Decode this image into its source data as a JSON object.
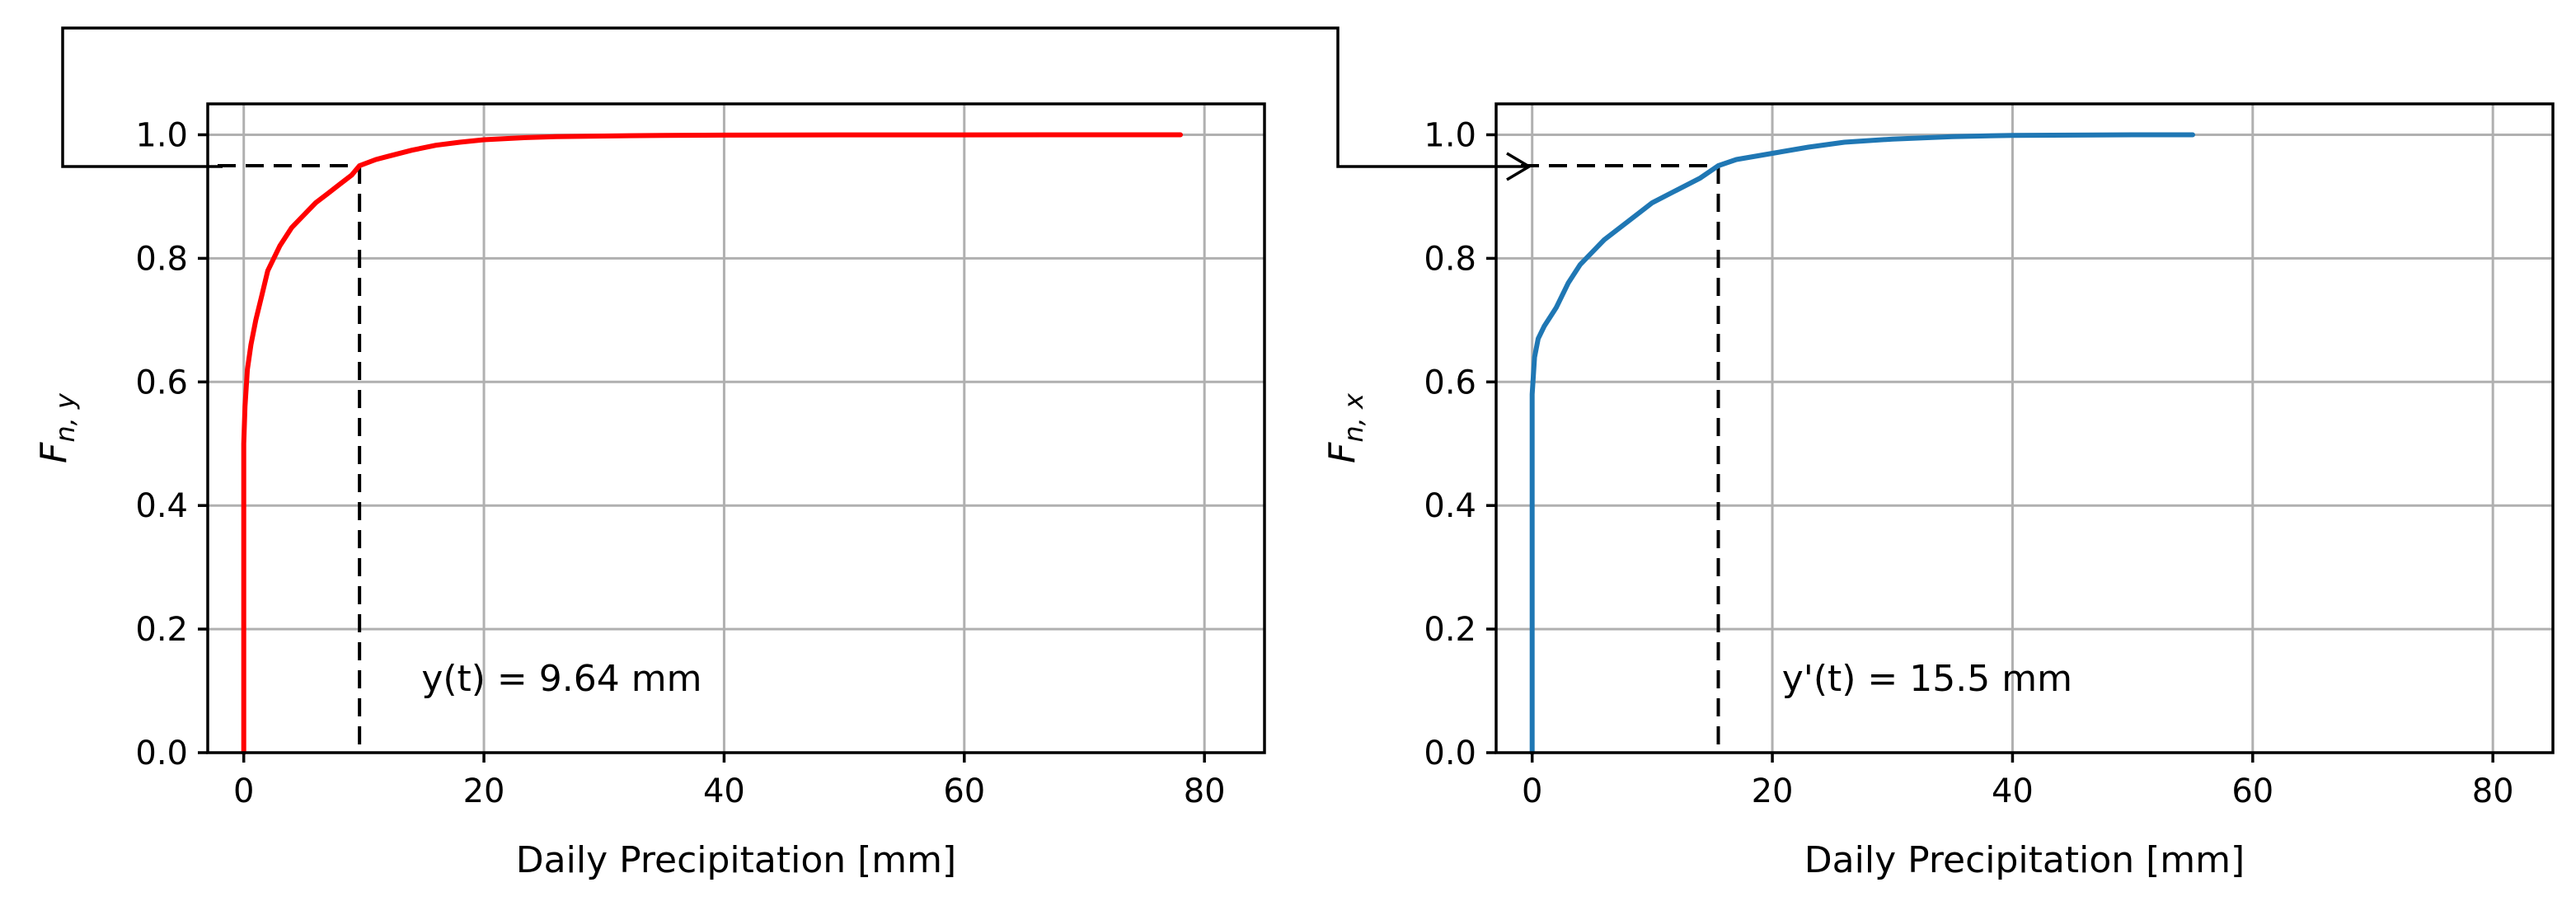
{
  "chart_data": [
    {
      "type": "line",
      "title": "",
      "xlabel": "Daily Precipitation [mm]",
      "ylabel": "Fn, y",
      "ylabel_main": "F",
      "ylabel_sub": "n, y",
      "xlim": [
        -3,
        85
      ],
      "ylim": [
        0,
        1.05
      ],
      "xticks": [
        0,
        20,
        40,
        60,
        80
      ],
      "yticks": [
        0.0,
        0.2,
        0.4,
        0.6,
        0.8,
        1.0
      ],
      "xtick_labels": [
        "0",
        "20",
        "40",
        "60",
        "80"
      ],
      "ytick_labels": [
        "0.0",
        "0.2",
        "0.4",
        "0.6",
        "0.8",
        "1.0"
      ],
      "grid": true,
      "series": [
        {
          "color": "#ff0000",
          "x": [
            0,
            0,
            0.1,
            0.3,
            0.6,
            1,
            1.5,
            2,
            3,
            4,
            5,
            6,
            7,
            8,
            9,
            9.64,
            11,
            12,
            14,
            16,
            18,
            20,
            23,
            26,
            30,
            35,
            40,
            50,
            60,
            70,
            78
          ],
          "y": [
            0,
            0.5,
            0.56,
            0.62,
            0.66,
            0.7,
            0.74,
            0.78,
            0.82,
            0.85,
            0.87,
            0.89,
            0.905,
            0.92,
            0.935,
            0.95,
            0.96,
            0.965,
            0.975,
            0.983,
            0.988,
            0.992,
            0.995,
            0.997,
            0.998,
            0.999,
            0.9995,
            0.9998,
            0.9999,
            1.0,
            1.0
          ]
        }
      ],
      "reference": {
        "x": 9.64,
        "y": 0.95
      },
      "annotation": "y(t) = 9.64 mm"
    },
    {
      "type": "line",
      "title": "",
      "xlabel": "Daily Precipitation [mm]",
      "ylabel": "Fn, x",
      "ylabel_main": "F",
      "ylabel_sub": "n, x",
      "xlim": [
        -3,
        85
      ],
      "ylim": [
        0,
        1.05
      ],
      "xticks": [
        0,
        20,
        40,
        60,
        80
      ],
      "yticks": [
        0.0,
        0.2,
        0.4,
        0.6,
        0.8,
        1.0
      ],
      "xtick_labels": [
        "0",
        "20",
        "40",
        "60",
        "80"
      ],
      "ytick_labels": [
        "0.0",
        "0.2",
        "0.4",
        "0.6",
        "0.8",
        "1.0"
      ],
      "grid": true,
      "series": [
        {
          "color": "#1f77b4",
          "x": [
            0,
            0,
            0.2,
            0.5,
            1,
            2,
            3,
            4,
            5,
            6,
            8,
            10,
            12,
            14,
            15.5,
            17,
            20,
            23,
            26,
            30,
            35,
            40,
            45,
            50,
            55
          ],
          "y": [
            0,
            0.58,
            0.64,
            0.67,
            0.69,
            0.72,
            0.76,
            0.79,
            0.81,
            0.83,
            0.86,
            0.89,
            0.91,
            0.93,
            0.95,
            0.96,
            0.97,
            0.98,
            0.988,
            0.993,
            0.997,
            0.999,
            0.9995,
            1.0,
            1.0
          ]
        }
      ],
      "reference": {
        "x": 15.5,
        "y": 0.95
      },
      "annotation": "y'(t) = 15.5 mm"
    }
  ]
}
